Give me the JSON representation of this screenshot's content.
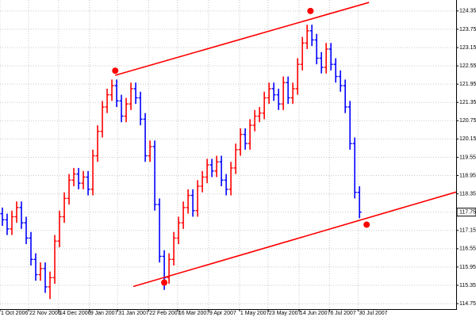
{
  "chart_data": {
    "type": "ohlc",
    "up_color": "#ff0000",
    "down_color": "#0000ff",
    "open": [
      117.7,
      117.5,
      117.2,
      117.6,
      117.9,
      117.4,
      116.9,
      116.2,
      115.7,
      115.9,
      115.3,
      115.6,
      116.8,
      117.6,
      118.2,
      118.8,
      119.0,
      118.7,
      118.9,
      118.5,
      119.6,
      120.4,
      121.2,
      121.6,
      121.9,
      121.4,
      120.9,
      121.3,
      121.8,
      121.5,
      120.8,
      119.6,
      119.9,
      118.0,
      116.3,
      115.6,
      116.2,
      116.9,
      117.4,
      117.9,
      118.3,
      117.8,
      118.6,
      118.9,
      119.3,
      119.1,
      119.4,
      118.8,
      118.5,
      119.2,
      119.8,
      120.3,
      120.0,
      120.6,
      120.9,
      121.0,
      121.5,
      121.8,
      121.6,
      121.3,
      122.0,
      121.5,
      121.8,
      122.6,
      123.3,
      123.7,
      123.4,
      122.8,
      122.5,
      123.1,
      122.6,
      122.2,
      121.9,
      121.2,
      120.0,
      118.4
    ],
    "high": [
      117.9,
      117.7,
      117.8,
      118.1,
      118.1,
      117.6,
      117.1,
      116.4,
      116.1,
      116.1,
      115.8,
      117.0,
      117.8,
      118.4,
      119.0,
      119.2,
      119.2,
      119.1,
      119.1,
      119.8,
      120.6,
      121.4,
      121.8,
      122.1,
      122.1,
      121.6,
      121.5,
      122.0,
      122.0,
      121.7,
      121.0,
      120.1,
      120.1,
      118.2,
      116.5,
      116.4,
      117.1,
      117.6,
      118.1,
      118.5,
      118.5,
      118.8,
      119.1,
      119.5,
      119.5,
      119.6,
      119.6,
      119.0,
      119.4,
      120.0,
      120.5,
      120.5,
      120.8,
      121.1,
      121.2,
      121.7,
      122.0,
      122.0,
      121.8,
      122.2,
      122.2,
      122.0,
      122.8,
      123.5,
      123.9,
      123.9,
      123.6,
      123.0,
      123.3,
      123.3,
      122.8,
      122.4,
      122.1,
      121.4,
      120.2,
      118.6
    ],
    "low": [
      117.3,
      117.0,
      117.0,
      117.4,
      117.2,
      116.7,
      116.0,
      115.5,
      115.5,
      115.1,
      114.9,
      115.4,
      116.6,
      117.4,
      118.0,
      118.6,
      118.5,
      118.5,
      118.3,
      118.3,
      119.4,
      120.2,
      121.0,
      121.4,
      121.2,
      120.7,
      120.7,
      121.1,
      121.3,
      120.6,
      119.4,
      119.4,
      117.8,
      116.1,
      115.2,
      115.4,
      116.0,
      116.7,
      117.2,
      117.7,
      117.6,
      117.6,
      118.4,
      118.7,
      118.9,
      118.9,
      118.6,
      118.3,
      118.3,
      119.0,
      119.6,
      119.8,
      119.8,
      120.4,
      120.7,
      120.8,
      121.3,
      121.4,
      121.1,
      121.1,
      121.3,
      121.3,
      121.6,
      122.4,
      123.1,
      123.2,
      122.6,
      122.3,
      122.3,
      122.4,
      122.0,
      121.7,
      121.0,
      119.8,
      118.2,
      117.55
    ],
    "close": [
      117.5,
      117.2,
      117.6,
      117.9,
      117.4,
      116.9,
      116.2,
      115.7,
      115.9,
      115.3,
      115.6,
      116.8,
      117.6,
      118.2,
      118.8,
      119.0,
      118.7,
      118.9,
      118.5,
      119.6,
      120.4,
      121.2,
      121.6,
      121.9,
      121.4,
      120.9,
      121.3,
      121.8,
      121.5,
      120.8,
      119.6,
      119.9,
      118.0,
      116.3,
      115.6,
      116.2,
      116.9,
      117.4,
      117.9,
      118.3,
      117.8,
      118.6,
      118.9,
      119.3,
      119.1,
      119.4,
      118.8,
      118.5,
      119.2,
      119.8,
      120.3,
      120.0,
      120.6,
      120.9,
      121.0,
      121.5,
      121.8,
      121.6,
      121.3,
      122.0,
      121.5,
      121.8,
      122.6,
      123.3,
      123.7,
      123.4,
      122.8,
      122.5,
      123.1,
      122.6,
      122.2,
      121.9,
      121.2,
      120.0,
      118.4,
      117.75
    ],
    "current_price": 117.75,
    "xlim": [
      -0.5,
      95.3
    ],
    "xticks": [
      {
        "value": -0.5,
        "label": "1 Oct 2006"
      },
      {
        "value": 5.5,
        "label": "22 Nov 2006"
      },
      {
        "value": 11.8,
        "label": "14 Dec 2006"
      },
      {
        "value": 18.3,
        "label": "9 Jan 2007"
      },
      {
        "value": 24.2,
        "label": "31 Jan 2007"
      },
      {
        "value": 30.7,
        "label": "22 Feb 2007"
      },
      {
        "value": 36.8,
        "label": "16 Mar 2007"
      },
      {
        "value": 43.3,
        "label": "9 Apr 2007"
      },
      {
        "value": 49.8,
        "label": "1 May 2007"
      },
      {
        "value": 55.8,
        "label": "23 May 2007"
      },
      {
        "value": 62.3,
        "label": "14 Jun 2007"
      },
      {
        "value": 68.7,
        "label": "6 Jul 2007"
      },
      {
        "value": 74.7,
        "label": "30 Jul 2007"
      }
    ],
    "ylim": [
      114.57,
      124.71
    ],
    "yticks": [
      {
        "value": 124.35,
        "label": "124.35"
      },
      {
        "value": 123.75,
        "label": "123.75"
      },
      {
        "value": 123.15,
        "label": "123.15"
      },
      {
        "value": 122.55,
        "label": "122.55"
      },
      {
        "value": 121.95,
        "label": "121.95"
      },
      {
        "value": 121.35,
        "label": "121.35"
      },
      {
        "value": 120.75,
        "label": "120.75"
      },
      {
        "value": 120.15,
        "label": "120.15"
      },
      {
        "value": 119.55,
        "label": "119.55"
      },
      {
        "value": 118.95,
        "label": "118.95"
      },
      {
        "value": 118.35,
        "label": "118.35"
      },
      {
        "value": 117.75,
        "label": "117.75"
      },
      {
        "value": 117.15,
        "label": "117.15"
      },
      {
        "value": 116.55,
        "label": "116.55"
      },
      {
        "value": 115.95,
        "label": "115.95"
      },
      {
        "value": 115.35,
        "label": "115.35"
      },
      {
        "value": 114.75,
        "label": "114.75"
      }
    ],
    "grid": true,
    "trend_color": "#ff0000",
    "trendlines": [
      {
        "x": [
          23.7,
          77
        ],
        "y": [
          122.24,
          124.63
        ]
      },
      {
        "x": [
          27.5,
          95.3
        ],
        "y": [
          115.31,
          118.41
        ]
      }
    ],
    "points": {
      "x": [
        23.7,
        64.7,
        34,
        76.5
      ],
      "y": [
        122.39,
        124.35,
        115.44,
        117.34
      ]
    }
  }
}
